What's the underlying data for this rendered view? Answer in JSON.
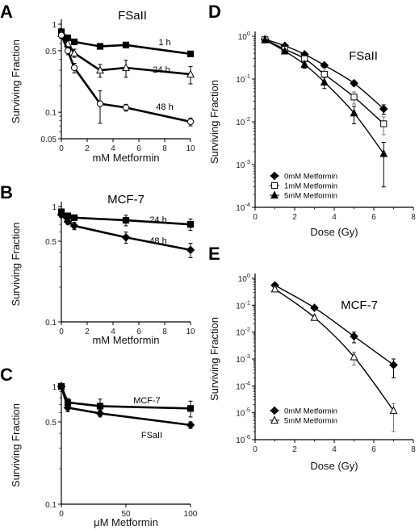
{
  "figure_panels": [
    "A",
    "B",
    "C",
    "D",
    "E"
  ],
  "chart_data": [
    {
      "panel": "A",
      "type": "line",
      "title": "FSaII",
      "xlabel": "mM Metformin",
      "ylabel": "Surviving Fraction",
      "y_scale": "log",
      "xlim": [
        0,
        10
      ],
      "ylim": [
        0.05,
        1
      ],
      "xticks": [
        0,
        2,
        4,
        6,
        8,
        10
      ],
      "yticks": [
        0.05,
        0.1,
        0.5,
        1
      ],
      "ytick_labels": [
        "0.05",
        "0.1",
        "0.5",
        "1"
      ],
      "series": [
        {
          "name": "1 h",
          "marker": "square-filled",
          "x": [
            0,
            0.5,
            1,
            3,
            5,
            10
          ],
          "y": [
            0.82,
            0.7,
            0.63,
            0.56,
            0.58,
            0.46
          ],
          "err": [
            0.06,
            0.05,
            0.04,
            0.04,
            0.04,
            0.03
          ]
        },
        {
          "name": "24 h",
          "marker": "triangle-open",
          "x": [
            0,
            0.5,
            1,
            3,
            5,
            10
          ],
          "y": [
            0.78,
            0.6,
            0.47,
            0.3,
            0.32,
            0.27
          ],
          "err": [
            0.06,
            0.05,
            0.05,
            0.05,
            0.07,
            0.06
          ]
        },
        {
          "name": "48 h",
          "marker": "circle-open",
          "x": [
            0,
            0.5,
            1,
            3,
            5,
            10
          ],
          "y": [
            0.75,
            0.5,
            0.32,
            0.125,
            0.113,
            0.078
          ],
          "err": [
            0.06,
            0.05,
            0.04,
            0.05,
            0.01,
            0.008
          ]
        }
      ]
    },
    {
      "panel": "B",
      "type": "line",
      "title": "MCF-7",
      "xlabel": "mM Metformin",
      "ylabel": "Surviving Fraction",
      "y_scale": "log",
      "xlim": [
        0,
        10
      ],
      "ylim": [
        0.1,
        1
      ],
      "xticks": [
        0,
        2,
        4,
        6,
        8,
        10
      ],
      "yticks": [
        0.1,
        0.5,
        1
      ],
      "ytick_labels": [
        "0.1",
        "0.5",
        "1"
      ],
      "series": [
        {
          "name": "24 h",
          "marker": "square-filled",
          "x": [
            0,
            0.5,
            1,
            5,
            10
          ],
          "y": [
            0.9,
            0.83,
            0.8,
            0.76,
            0.7
          ],
          "err": [
            0.04,
            0.04,
            0.04,
            0.08,
            0.08
          ]
        },
        {
          "name": "48 h",
          "marker": "diamond-filled",
          "x": [
            0,
            0.5,
            1,
            5,
            10
          ],
          "y": [
            0.85,
            0.74,
            0.68,
            0.54,
            0.42
          ],
          "err": [
            0.04,
            0.04,
            0.05,
            0.06,
            0.06
          ]
        }
      ]
    },
    {
      "panel": "C",
      "type": "line",
      "title": "",
      "xlabel": "μM Metformin",
      "ylabel": "Surviving Fraction",
      "y_scale": "log",
      "xlim": [
        0,
        100
      ],
      "ylim": [
        0.1,
        1
      ],
      "xticks": [
        0,
        50,
        100
      ],
      "yticks": [
        0.1,
        0.5,
        1
      ],
      "ytick_labels": [
        "0.1",
        "0.5",
        "1"
      ],
      "series": [
        {
          "name": "MCF-7",
          "marker": "square-filled",
          "x": [
            0,
            5,
            30,
            100
          ],
          "y": [
            1.0,
            0.73,
            0.68,
            0.65
          ],
          "err": [
            0,
            0.06,
            0.1,
            0.1
          ]
        },
        {
          "name": "FSaII",
          "marker": "diamond-filled",
          "x": [
            0,
            5,
            30,
            100
          ],
          "y": [
            1.0,
            0.66,
            0.59,
            0.47
          ],
          "err": [
            0,
            0.05,
            0.04,
            0.03
          ]
        }
      ]
    },
    {
      "panel": "D",
      "type": "line",
      "title": "FSaII",
      "xlabel": "Dose (Gy)",
      "ylabel": "Surviving Fraction",
      "y_scale": "log",
      "xlim": [
        0,
        8
      ],
      "ylim": [
        0.0001,
        1
      ],
      "xticks": [
        0,
        2,
        4,
        6,
        8
      ],
      "yticks": [
        1,
        0.1,
        0.01,
        0.001,
        0.0001
      ],
      "ytick_labels": [
        "10^0",
        "10^-1",
        "10^-2",
        "10^-3",
        "10^-4"
      ],
      "legend": "lower-left",
      "series": [
        {
          "name": "0mM Metformin",
          "marker": "diamond-filled",
          "x": [
            0.5,
            1.5,
            2.5,
            3.5,
            5,
            6.5
          ],
          "y": [
            0.85,
            0.6,
            0.38,
            0.21,
            0.08,
            0.02
          ],
          "err": [
            0.03,
            0.03,
            0.03,
            0.02,
            0.01,
            0.005
          ]
        },
        {
          "name": "1mM Metformin",
          "marker": "square-open",
          "x": [
            0.5,
            1.5,
            2.5,
            3.5,
            5,
            6.5
          ],
          "y": [
            0.83,
            0.5,
            0.3,
            0.13,
            0.038,
            0.009
          ],
          "err": [
            0.03,
            0.04,
            0.04,
            0.05,
            0.012,
            0.004
          ]
        },
        {
          "name": "5mM Metformin",
          "marker": "triangle-filled",
          "x": [
            0.5,
            1.5,
            2.5,
            3.5,
            5,
            6.5
          ],
          "y": [
            0.82,
            0.45,
            0.22,
            0.085,
            0.016,
            0.0018
          ],
          "err": [
            0.03,
            0.04,
            0.04,
            0.025,
            0.007,
            0.0015
          ]
        }
      ]
    },
    {
      "panel": "E",
      "type": "line",
      "title": "MCF-7",
      "xlabel": "Dose (Gy)",
      "ylabel": "Surviving Fraction",
      "y_scale": "log",
      "xlim": [
        0,
        8
      ],
      "ylim": [
        1e-06,
        1
      ],
      "xticks": [
        0,
        2,
        4,
        6,
        8
      ],
      "yticks": [
        1,
        0.1,
        0.01,
        0.001,
        0.0001,
        1e-05,
        1e-06
      ],
      "ytick_labels": [
        "10^0",
        "10^-1",
        "10^-2",
        "10^-3",
        "10^-4",
        "10^-5",
        "10^-6"
      ],
      "legend": "lower-left",
      "series": [
        {
          "name": "0mM Metformin",
          "marker": "diamond-filled",
          "x": [
            1,
            3,
            5,
            7
          ],
          "y": [
            0.55,
            0.08,
            0.007,
            0.0006
          ],
          "err": [
            0.05,
            0.01,
            0.003,
            0.0004
          ]
        },
        {
          "name": "5mM Metformin",
          "marker": "triangle-open",
          "x": [
            1,
            3,
            5,
            7
          ],
          "y": [
            0.4,
            0.035,
            0.0012,
            1.2e-05
          ],
          "err": [
            0.08,
            0.008,
            0.0006,
            1e-05
          ]
        }
      ]
    }
  ]
}
